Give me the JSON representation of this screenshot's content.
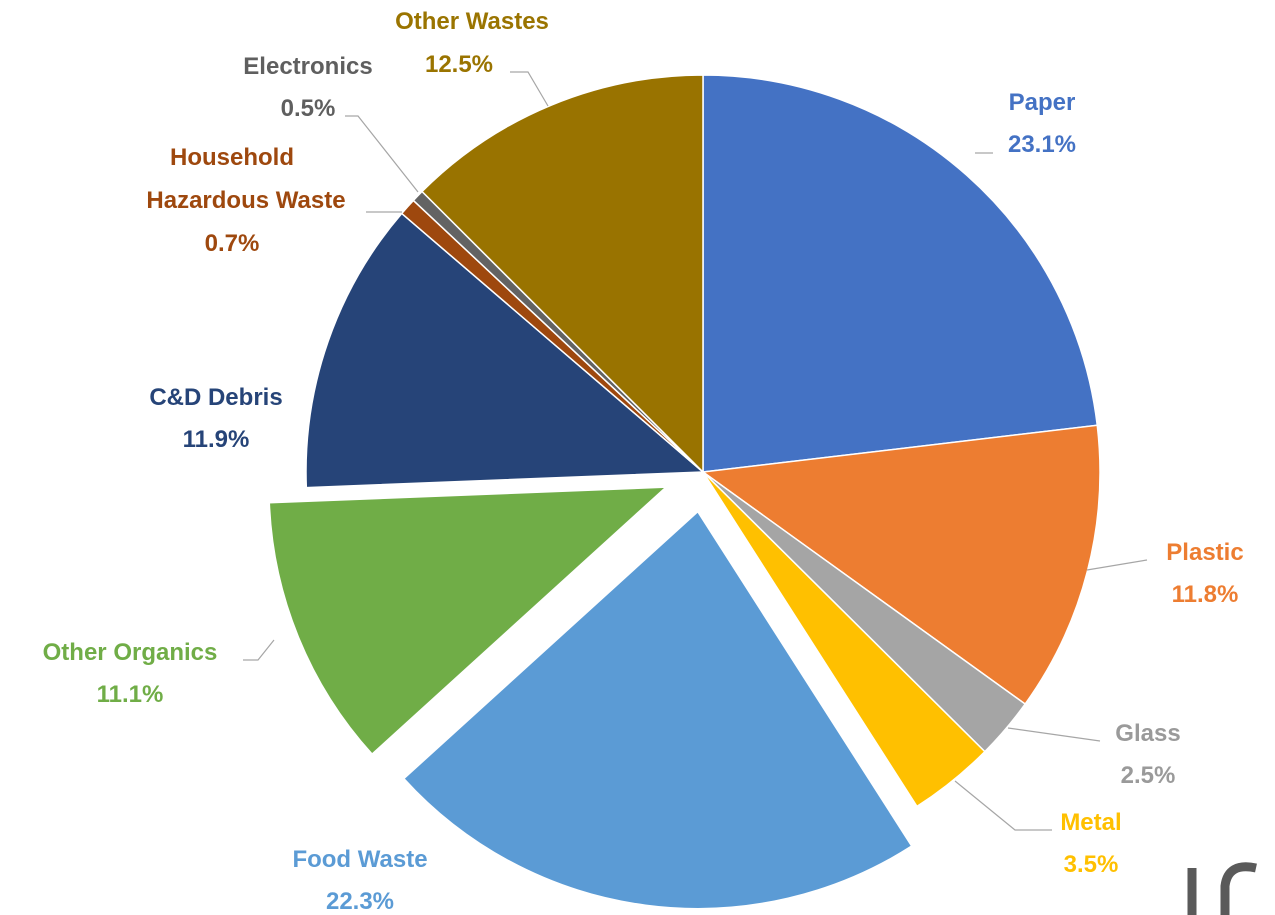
{
  "chart_data": {
    "type": "pie",
    "title": "",
    "slices": [
      {
        "name": "Paper",
        "value": 23.1,
        "label": "23.1%",
        "color": "#4472C4",
        "exploded": false
      },
      {
        "name": "Plastic",
        "value": 11.8,
        "label": "11.8%",
        "color": "#ED7D31",
        "exploded": false
      },
      {
        "name": "Glass",
        "value": 2.5,
        "label": "2.5%",
        "color": "#A5A5A5",
        "exploded": false
      },
      {
        "name": "Metal",
        "value": 3.5,
        "label": "3.5%",
        "color": "#FFC000",
        "exploded": false
      },
      {
        "name": "Food Waste",
        "value": 22.3,
        "label": "22.3%",
        "color": "#5B9BD5",
        "exploded": true
      },
      {
        "name": "Other Organics",
        "value": 11.1,
        "label": "11.1%",
        "color": "#70AD47",
        "exploded": true
      },
      {
        "name": "C&D Debris",
        "value": 11.9,
        "label": "11.9%",
        "color": "#264478",
        "exploded": false
      },
      {
        "name": "Household Hazardous Waste",
        "value": 0.7,
        "label": "0.7%",
        "color": "#9E480E",
        "exploded": false
      },
      {
        "name": "Electronics",
        "value": 0.5,
        "label": "0.5%",
        "color": "#636363",
        "exploded": false
      },
      {
        "name": "Other Wastes",
        "value": 12.5,
        "label": "12.5%",
        "color": "#997300",
        "exploded": false
      }
    ],
    "start_angle_deg": 0,
    "direction": "clockwise",
    "legend": "none",
    "data_labels": "outside-with-leader-lines"
  }
}
